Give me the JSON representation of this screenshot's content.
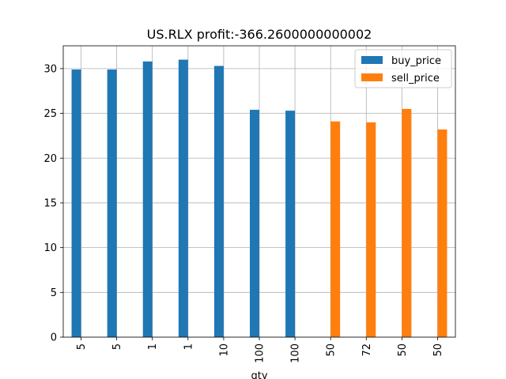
{
  "chart_data": {
    "type": "bar",
    "title": "US.RLX  profit:-366.2600000000002",
    "xlabel": "qty",
    "ylabel": "",
    "categories": [
      "5",
      "5",
      "1",
      "1",
      "10",
      "100",
      "100",
      "50",
      "72",
      "50",
      "50"
    ],
    "series": [
      {
        "name": "buy_price",
        "color": "#1f77b4",
        "values": [
          29.9,
          29.9,
          30.8,
          31.0,
          30.3,
          25.4,
          25.3,
          null,
          null,
          null,
          null
        ]
      },
      {
        "name": "sell_price",
        "color": "#ff7f0e",
        "values": [
          null,
          null,
          null,
          null,
          null,
          null,
          null,
          24.1,
          24.0,
          25.5,
          23.2
        ]
      }
    ],
    "ylim": [
      0,
      32.55
    ],
    "yticks": [
      0,
      5,
      10,
      15,
      20,
      25,
      30
    ],
    "grid": true,
    "legend_position": "top-right"
  }
}
